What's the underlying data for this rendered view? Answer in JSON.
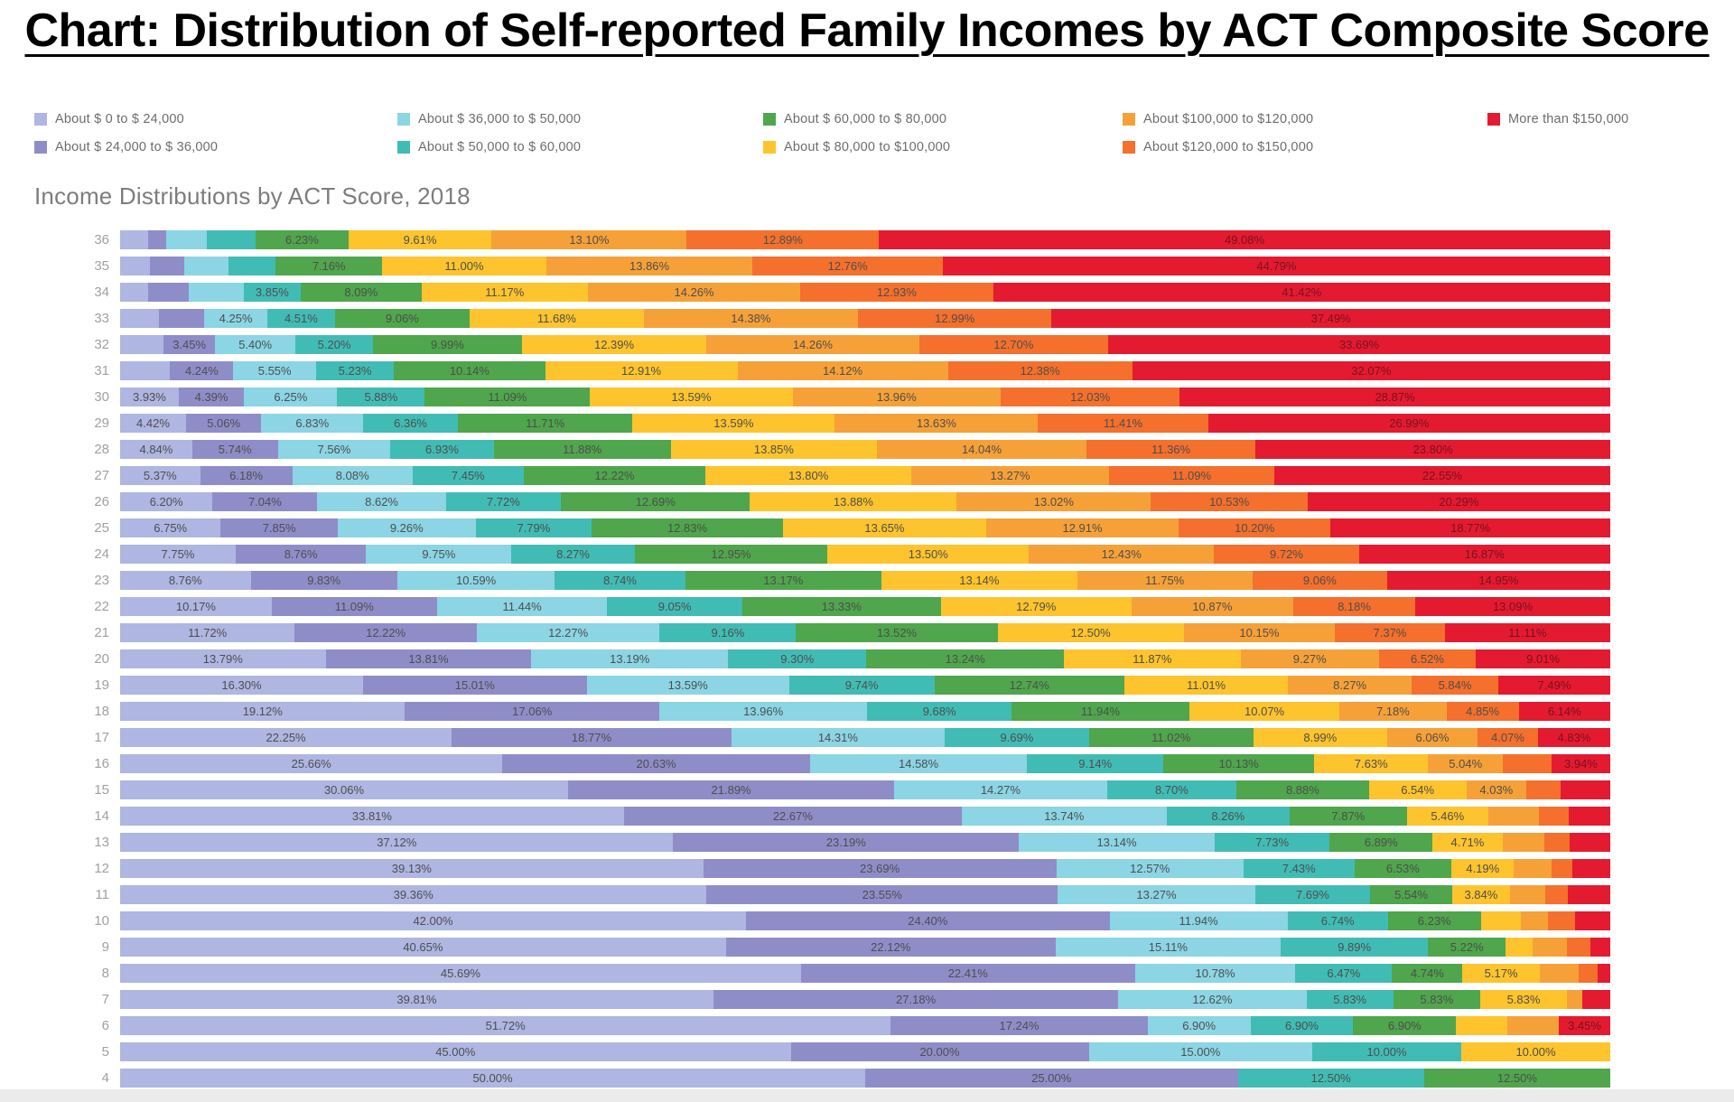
{
  "page": {
    "title": "Chart: Distribution of Self-reported Family Incomes by ACT Composite Score"
  },
  "chart_data": {
    "type": "bar",
    "orientation": "horizontal",
    "stacked": true,
    "title": "Income Distributions by ACT Score, 2018",
    "ylabel": "ACT Composite Score",
    "unit": "%",
    "xlim": [
      0,
      100
    ],
    "grid": false,
    "legend_position": "top",
    "categories": [
      "About $ 0 to $ 24,000",
      "About $ 24,000 to $ 36,000",
      "About $ 36,000 to $ 50,000",
      "About $ 50,000 to $ 60,000",
      "About $ 60,000 to $ 80,000",
      "About $ 80,000 to $100,000",
      "About $100,000 to $120,000",
      "About $120,000 to $150,000",
      "More than $150,000"
    ],
    "colors": [
      "#aeb6e1",
      "#8f8dc8",
      "#8bd5e4",
      "#41bcb4",
      "#4fa64c",
      "#fdc42d",
      "#f6a138",
      "#f4702c",
      "#e41a30"
    ],
    "rows": [
      {
        "score": 36,
        "values": [
          1.9,
          1.2,
          2.7,
          3.29,
          6.23,
          9.61,
          13.1,
          12.89,
          49.08
        ],
        "labels": [
          "",
          "",
          "",
          "",
          "6.23%",
          "9.61%",
          "13.10%",
          "12.89%",
          "49.08%"
        ]
      },
      {
        "score": 35,
        "values": [
          2.0,
          2.3,
          3.0,
          3.13,
          7.16,
          11.0,
          13.86,
          12.76,
          44.79
        ],
        "labels": [
          "",
          "",
          "",
          "",
          "7.16%",
          "11.00%",
          "13.86%",
          "12.76%",
          "44.79%"
        ]
      },
      {
        "score": 34,
        "values": [
          1.9,
          2.7,
          3.68,
          3.85,
          8.09,
          11.17,
          14.26,
          12.93,
          41.42
        ],
        "labels": [
          "",
          "",
          "",
          "3.85%",
          "8.09%",
          "11.17%",
          "14.26%",
          "12.93%",
          "41.42%"
        ]
      },
      {
        "score": 33,
        "values": [
          2.6,
          3.04,
          4.25,
          4.51,
          9.06,
          11.68,
          14.38,
          12.99,
          37.49
        ],
        "labels": [
          "",
          "",
          "4.25%",
          "4.51%",
          "9.06%",
          "11.68%",
          "14.38%",
          "12.99%",
          "37.49%"
        ]
      },
      {
        "score": 32,
        "values": [
          2.92,
          3.45,
          5.4,
          5.2,
          9.99,
          12.39,
          14.26,
          12.7,
          33.69
        ],
        "labels": [
          "",
          "3.45%",
          "5.40%",
          "5.20%",
          "9.99%",
          "12.39%",
          "14.26%",
          "12.70%",
          "33.69%"
        ]
      },
      {
        "score": 31,
        "values": [
          3.36,
          4.24,
          5.55,
          5.23,
          10.14,
          12.91,
          14.12,
          12.38,
          32.07
        ],
        "labels": [
          "",
          "4.24%",
          "5.55%",
          "5.23%",
          "10.14%",
          "12.91%",
          "14.12%",
          "12.38%",
          "32.07%"
        ]
      },
      {
        "score": 30,
        "values": [
          3.93,
          4.39,
          6.25,
          5.88,
          11.09,
          13.59,
          13.96,
          12.03,
          28.87
        ],
        "labels": [
          "3.93%",
          "4.39%",
          "6.25%",
          "5.88%",
          "11.09%",
          "13.59%",
          "13.96%",
          "12.03%",
          "28.87%"
        ]
      },
      {
        "score": 29,
        "values": [
          4.42,
          5.06,
          6.83,
          6.36,
          11.71,
          13.59,
          13.63,
          11.41,
          26.99
        ],
        "labels": [
          "4.42%",
          "5.06%",
          "6.83%",
          "6.36%",
          "11.71%",
          "13.59%",
          "13.63%",
          "11.41%",
          "26.99%"
        ]
      },
      {
        "score": 28,
        "values": [
          4.84,
          5.74,
          7.56,
          6.93,
          11.88,
          13.85,
          14.04,
          11.36,
          23.8
        ],
        "labels": [
          "4.84%",
          "5.74%",
          "7.56%",
          "6.93%",
          "11.88%",
          "13.85%",
          "14.04%",
          "11.36%",
          "23.80%"
        ]
      },
      {
        "score": 27,
        "values": [
          5.37,
          6.18,
          8.08,
          7.45,
          12.22,
          13.8,
          13.27,
          11.09,
          22.55
        ],
        "labels": [
          "5.37%",
          "6.18%",
          "8.08%",
          "7.45%",
          "12.22%",
          "13.80%",
          "13.27%",
          "11.09%",
          "22.55%"
        ]
      },
      {
        "score": 26,
        "values": [
          6.2,
          7.04,
          8.62,
          7.72,
          12.69,
          13.88,
          13.02,
          10.53,
          20.29
        ],
        "labels": [
          "6.20%",
          "7.04%",
          "8.62%",
          "7.72%",
          "12.69%",
          "13.88%",
          "13.02%",
          "10.53%",
          "20.29%"
        ]
      },
      {
        "score": 25,
        "values": [
          6.75,
          7.85,
          9.26,
          7.79,
          12.83,
          13.65,
          12.91,
          10.2,
          18.77
        ],
        "labels": [
          "6.75%",
          "7.85%",
          "9.26%",
          "7.79%",
          "12.83%",
          "13.65%",
          "12.91%",
          "10.20%",
          "18.77%"
        ]
      },
      {
        "score": 24,
        "values": [
          7.75,
          8.76,
          9.75,
          8.27,
          12.95,
          13.5,
          12.43,
          9.72,
          16.87
        ],
        "labels": [
          "7.75%",
          "8.76%",
          "9.75%",
          "8.27%",
          "12.95%",
          "13.50%",
          "12.43%",
          "9.72%",
          "16.87%"
        ]
      },
      {
        "score": 23,
        "values": [
          8.76,
          9.83,
          10.59,
          8.74,
          13.17,
          13.14,
          11.75,
          9.06,
          14.95
        ],
        "labels": [
          "8.76%",
          "9.83%",
          "10.59%",
          "8.74%",
          "13.17%",
          "13.14%",
          "11.75%",
          "9.06%",
          "14.95%"
        ]
      },
      {
        "score": 22,
        "values": [
          10.17,
          11.09,
          11.44,
          9.05,
          13.33,
          12.79,
          10.87,
          8.18,
          13.09
        ],
        "labels": [
          "10.17%",
          "11.09%",
          "11.44%",
          "9.05%",
          "13.33%",
          "12.79%",
          "10.87%",
          "8.18%",
          "13.09%"
        ]
      },
      {
        "score": 21,
        "values": [
          11.72,
          12.22,
          12.27,
          9.16,
          13.52,
          12.5,
          10.15,
          7.37,
          11.11
        ],
        "labels": [
          "11.72%",
          "12.22%",
          "12.27%",
          "9.16%",
          "13.52%",
          "12.50%",
          "10.15%",
          "7.37%",
          "11.11%"
        ]
      },
      {
        "score": 20,
        "values": [
          13.79,
          13.81,
          13.19,
          9.3,
          13.24,
          11.87,
          9.27,
          6.52,
          9.01
        ],
        "labels": [
          "13.79%",
          "13.81%",
          "13.19%",
          "9.30%",
          "13.24%",
          "11.87%",
          "9.27%",
          "6.52%",
          "9.01%"
        ]
      },
      {
        "score": 19,
        "values": [
          16.3,
          15.01,
          13.59,
          9.74,
          12.74,
          11.01,
          8.27,
          5.84,
          7.49
        ],
        "labels": [
          "16.30%",
          "15.01%",
          "13.59%",
          "9.74%",
          "12.74%",
          "11.01%",
          "8.27%",
          "5.84%",
          "7.49%"
        ]
      },
      {
        "score": 18,
        "values": [
          19.12,
          17.06,
          13.96,
          9.68,
          11.94,
          10.07,
          7.18,
          4.85,
          6.14
        ],
        "labels": [
          "19.12%",
          "17.06%",
          "13.96%",
          "9.68%",
          "11.94%",
          "10.07%",
          "7.18%",
          "4.85%",
          "6.14%"
        ]
      },
      {
        "score": 17,
        "values": [
          22.25,
          18.77,
          14.31,
          9.69,
          11.02,
          8.99,
          6.06,
          4.07,
          4.83
        ],
        "labels": [
          "22.25%",
          "18.77%",
          "14.31%",
          "9.69%",
          "11.02%",
          "8.99%",
          "6.06%",
          "4.07%",
          "4.83%"
        ]
      },
      {
        "score": 16,
        "values": [
          25.66,
          20.63,
          14.58,
          9.14,
          10.13,
          7.63,
          5.04,
          3.25,
          3.94
        ],
        "labels": [
          "25.66%",
          "20.63%",
          "14.58%",
          "9.14%",
          "10.13%",
          "7.63%",
          "5.04%",
          "",
          "3.94%"
        ]
      },
      {
        "score": 15,
        "values": [
          30.06,
          21.89,
          14.27,
          8.7,
          8.88,
          6.54,
          4.03,
          2.3,
          3.33
        ],
        "labels": [
          "30.06%",
          "21.89%",
          "14.27%",
          "8.70%",
          "8.88%",
          "6.54%",
          "4.03%",
          "",
          ""
        ]
      },
      {
        "score": 14,
        "values": [
          33.81,
          22.67,
          13.74,
          8.26,
          7.87,
          5.46,
          3.4,
          2.0,
          2.79
        ],
        "labels": [
          "33.81%",
          "22.67%",
          "13.74%",
          "8.26%",
          "7.87%",
          "5.46%",
          "",
          "",
          ""
        ]
      },
      {
        "score": 13,
        "values": [
          37.12,
          23.19,
          13.14,
          7.73,
          6.89,
          4.71,
          2.8,
          1.7,
          2.72
        ],
        "labels": [
          "37.12%",
          "23.19%",
          "13.14%",
          "7.73%",
          "6.89%",
          "4.71%",
          "",
          "",
          ""
        ]
      },
      {
        "score": 12,
        "values": [
          39.13,
          23.69,
          12.57,
          7.43,
          6.53,
          4.19,
          2.5,
          1.4,
          2.56
        ],
        "labels": [
          "39.13%",
          "23.69%",
          "12.57%",
          "7.43%",
          "6.53%",
          "4.19%",
          "",
          "",
          ""
        ]
      },
      {
        "score": 11,
        "values": [
          39.36,
          23.55,
          13.27,
          7.69,
          5.54,
          3.84,
          2.4,
          1.5,
          2.85
        ],
        "labels": [
          "39.36%",
          "23.55%",
          "13.27%",
          "7.69%",
          "5.54%",
          "3.84%",
          "",
          "",
          ""
        ]
      },
      {
        "score": 10,
        "values": [
          42.0,
          24.4,
          11.94,
          6.74,
          6.23,
          2.7,
          1.8,
          1.8,
          2.39
        ],
        "labels": [
          "42.00%",
          "24.40%",
          "11.94%",
          "6.74%",
          "6.23%",
          "",
          "",
          "",
          ""
        ]
      },
      {
        "score": 9,
        "values": [
          40.65,
          22.12,
          15.11,
          9.89,
          5.22,
          1.8,
          2.3,
          1.6,
          1.31
        ],
        "labels": [
          "40.65%",
          "22.12%",
          "15.11%",
          "9.89%",
          "5.22%",
          "",
          "",
          "",
          ""
        ]
      },
      {
        "score": 8,
        "values": [
          45.69,
          22.41,
          10.78,
          6.47,
          4.74,
          5.17,
          2.6,
          1.3,
          0.84
        ],
        "labels": [
          "45.69%",
          "22.41%",
          "10.78%",
          "6.47%",
          "4.74%",
          "5.17%",
          "",
          "",
          ""
        ]
      },
      {
        "score": 7,
        "values": [
          39.81,
          27.18,
          12.62,
          5.83,
          5.83,
          5.83,
          1.0,
          0,
          1.9
        ],
        "labels": [
          "39.81%",
          "27.18%",
          "12.62%",
          "5.83%",
          "5.83%",
          "5.83%",
          "",
          "",
          ""
        ]
      },
      {
        "score": 6,
        "values": [
          51.72,
          17.24,
          6.9,
          6.9,
          6.9,
          3.45,
          3.45,
          0,
          3.45
        ],
        "labels": [
          "51.72%",
          "17.24%",
          "6.90%",
          "6.90%",
          "6.90%",
          "",
          "",
          "",
          "3.45%"
        ]
      },
      {
        "score": 5,
        "values": [
          45.0,
          20.0,
          15.0,
          10.0,
          0,
          10.0,
          0,
          0,
          0
        ],
        "labels": [
          "45.00%",
          "20.00%",
          "15.00%",
          "10.00%",
          "",
          "10.00%",
          "",
          "",
          ""
        ]
      },
      {
        "score": 4,
        "values": [
          50.0,
          25.0,
          0,
          12.5,
          12.5,
          0,
          0,
          0,
          0
        ],
        "labels": [
          "50.00%",
          "25.00%",
          "",
          "12.50%",
          "12.50%",
          "",
          "",
          "",
          ""
        ]
      }
    ]
  }
}
